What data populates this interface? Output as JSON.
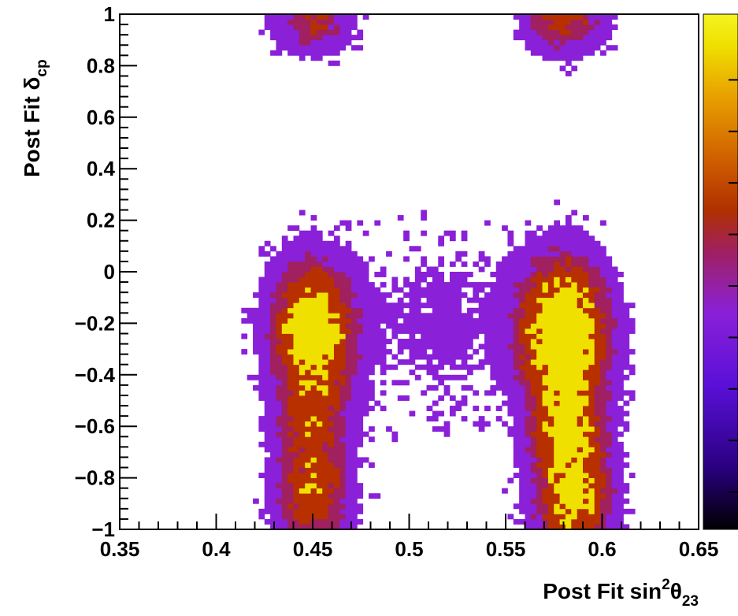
{
  "chart_data": {
    "type": "heatmap",
    "title": "",
    "xlabel": {
      "prefix": "Post Fit sin",
      "sup": "2",
      "greek": "θ",
      "sub": "23"
    },
    "ylabel": {
      "prefix": "Post Fit  ",
      "greek": "δ",
      "sub": "cp"
    },
    "xlim": [
      0.35,
      0.65
    ],
    "ylim": [
      -1,
      1
    ],
    "xticks": [
      0.35,
      0.4,
      0.45,
      0.5,
      0.55,
      0.6,
      0.65
    ],
    "xtick_labels": [
      "0.35",
      "0.4",
      "0.45",
      "0.5",
      "0.55",
      "0.6",
      "0.65"
    ],
    "yticks": [
      -1,
      -0.8,
      -0.6,
      -0.4,
      -0.2,
      0,
      0.2,
      0.4,
      0.6,
      0.8,
      1
    ],
    "ytick_labels": [
      "−1",
      "−0.8",
      "−0.6",
      "−0.4",
      "−0.2",
      "0",
      "0.2",
      "0.4",
      "0.6",
      "0.8",
      "1"
    ],
    "bins": {
      "nx": 100,
      "ny": 100
    },
    "colormap": [
      "#000000",
      "#2a0080",
      "#5a10d8",
      "#8a20d8",
      "#a02060",
      "#b03000",
      "#d06000",
      "#e8a000",
      "#f0e000",
      "#f4f420"
    ],
    "density_components": [
      {
        "x": 0.45,
        "y": -0.23,
        "sx": 0.013,
        "sy": 0.16,
        "w": 1.0
      },
      {
        "x": 0.58,
        "y": -0.23,
        "sx": 0.014,
        "sy": 0.17,
        "w": 1.15
      },
      {
        "x": 0.45,
        "y": -0.88,
        "sx": 0.012,
        "sy": 0.12,
        "w": 0.55
      },
      {
        "x": 0.585,
        "y": -0.88,
        "sx": 0.012,
        "sy": 0.13,
        "w": 0.8
      },
      {
        "x": 0.45,
        "y": 0.98,
        "sx": 0.012,
        "sy": 0.08,
        "w": 0.38
      },
      {
        "x": 0.58,
        "y": 0.98,
        "sx": 0.013,
        "sy": 0.08,
        "w": 0.45
      },
      {
        "x": 0.45,
        "y": -0.6,
        "sx": 0.012,
        "sy": 0.12,
        "w": 0.45
      },
      {
        "x": 0.582,
        "y": -0.6,
        "sx": 0.012,
        "sy": 0.12,
        "w": 0.7
      },
      {
        "x": 0.515,
        "y": -0.2,
        "sx": 0.03,
        "sy": 0.25,
        "w": 0.08
      }
    ]
  }
}
